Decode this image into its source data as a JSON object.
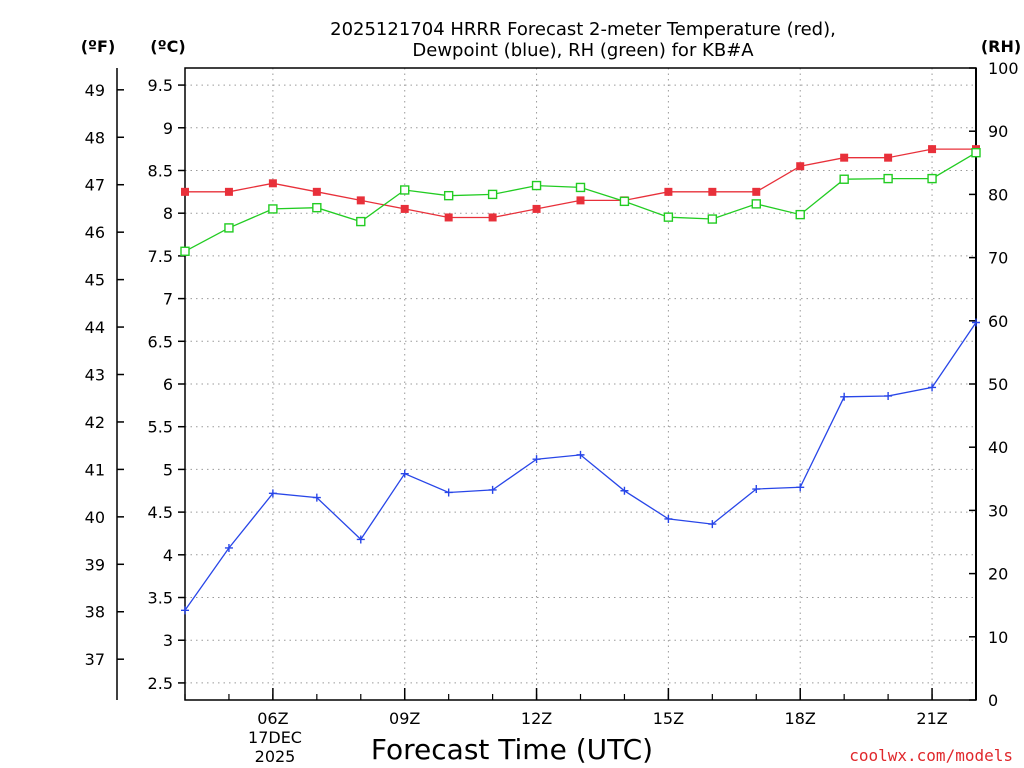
{
  "chart_data": {
    "type": "line",
    "title_line1": "2025121704 HRRR Forecast 2-meter Temperature (red),",
    "title_line2": "Dewpoint (blue), RH (green) for KB#A",
    "xlabel": "Forecast Time (UTC)",
    "unit_labels": {
      "fahrenheit": "(ºF)",
      "celsius": "(ºC)",
      "rh": "(RH)"
    },
    "x_hours": [
      4,
      5,
      6,
      7,
      8,
      9,
      10,
      11,
      12,
      13,
      14,
      15,
      16,
      17,
      18,
      19,
      20,
      21,
      22
    ],
    "x_ticks": [
      {
        "hour": 6,
        "label": "06Z"
      },
      {
        "hour": 9,
        "label": "09Z"
      },
      {
        "hour": 12,
        "label": "12Z"
      },
      {
        "hour": 15,
        "label": "15Z"
      },
      {
        "hour": 18,
        "label": "18Z"
      },
      {
        "hour": 21,
        "label": "21Z"
      }
    ],
    "date_label": {
      "line1": "17DEC",
      "line2": "2025"
    },
    "celsius_axis": {
      "min": 2.3,
      "max": 9.7,
      "ticks": [
        2.5,
        3,
        3.5,
        4,
        4.5,
        5,
        5.5,
        6,
        6.5,
        7,
        7.5,
        8,
        8.5,
        9,
        9.5
      ]
    },
    "fahrenheit_axis": {
      "ticks": [
        37,
        38,
        39,
        40,
        41,
        42,
        43,
        44,
        45,
        46,
        47,
        48,
        49
      ]
    },
    "rh_axis": {
      "min": 0,
      "max": 100,
      "ticks": [
        0,
        10,
        20,
        30,
        40,
        50,
        60,
        70,
        80,
        90,
        100
      ]
    },
    "series": [
      {
        "name": "Temperature",
        "axis": "celsius",
        "color": "#e8303a",
        "marker": "filled-square",
        "values": [
          8.25,
          8.25,
          8.35,
          8.25,
          8.15,
          8.05,
          7.95,
          7.95,
          8.05,
          8.15,
          8.15,
          8.25,
          8.25,
          8.25,
          8.55,
          8.65,
          8.65,
          8.75,
          8.75
        ]
      },
      {
        "name": "Dewpoint",
        "axis": "celsius",
        "color": "#2846e8",
        "marker": "plus",
        "values": [
          3.35,
          4.08,
          4.72,
          4.67,
          4.18,
          4.95,
          4.73,
          4.76,
          5.12,
          5.17,
          4.75,
          4.42,
          4.36,
          4.77,
          4.79,
          5.85,
          5.86,
          5.96,
          6.72
        ]
      },
      {
        "name": "Relative Humidity",
        "axis": "rh",
        "color": "#22cc22",
        "marker": "open-square",
        "values": [
          71,
          74.7,
          77.7,
          77.9,
          75.7,
          80.7,
          79.8,
          80,
          81.4,
          81.1,
          78.9,
          76.4,
          76.1,
          78.5,
          76.8,
          82.4,
          82.5,
          82.5,
          86.6
        ]
      }
    ]
  },
  "credit": "coolwx.com/models"
}
